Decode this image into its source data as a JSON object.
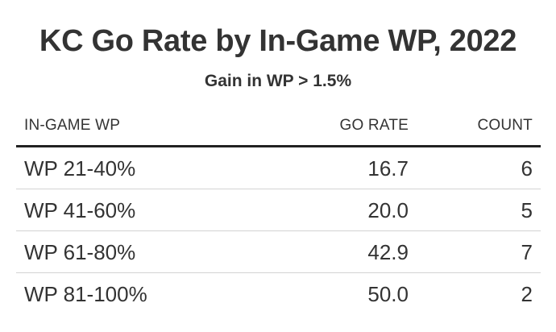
{
  "chart_data": {
    "type": "table",
    "title": "KC Go Rate by In-Game WP, 2022",
    "subtitle": "Gain in WP > 1.5%",
    "columns": [
      "IN-GAME WP",
      "GO RATE",
      "COUNT"
    ],
    "rows": [
      {
        "wp": "WP 21-40%",
        "go_rate": "16.7",
        "count": "6"
      },
      {
        "wp": "WP 41-60%",
        "go_rate": "20.0",
        "count": "5"
      },
      {
        "wp": "WP 61-80%",
        "go_rate": "42.9",
        "count": "7"
      },
      {
        "wp": "WP 81-100%",
        "go_rate": "50.0",
        "count": "2"
      }
    ]
  },
  "colors": {
    "text": "#333333",
    "header_rule": "#222222",
    "row_rule": "#d3d3d3"
  }
}
